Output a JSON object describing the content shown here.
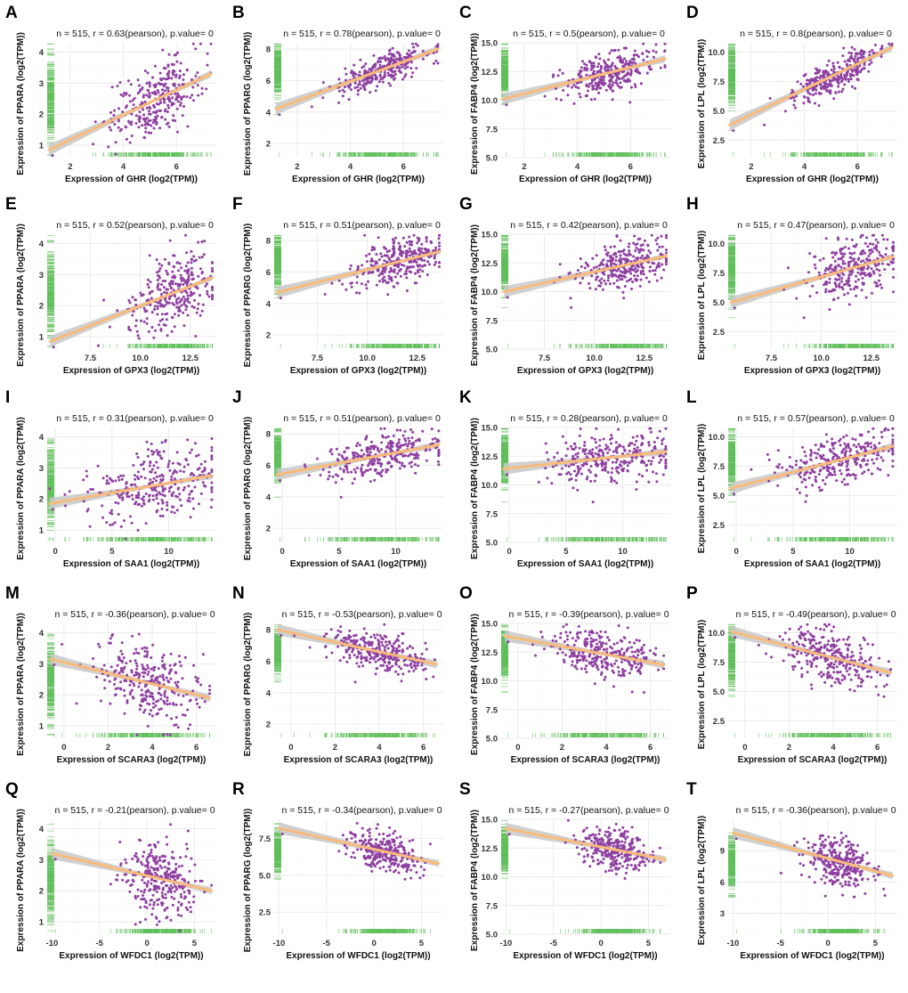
{
  "figure": {
    "n_label": "n = 515",
    "method": "pearson",
    "colors": {
      "points": "#8e3fa0",
      "fit_line": "#f9bb7a",
      "confidence_band": "#c8c8c8",
      "rug": "#5fbf5a",
      "grid": "#ebebeb"
    }
  },
  "chart_data": [
    {
      "panel": "A",
      "type": "scatter",
      "title": "n = 515, r = 0.63(pearson), p.value= 0",
      "xgene": "GHR",
      "ygene": "PPARA",
      "xlabel": "Expression of GHR (log2(TPM))",
      "ylabel": "Expression of PPARA (log2(TPM))",
      "n": 515,
      "r": 0.63,
      "p_value": 0,
      "xlim": [
        1.1,
        7.5
      ],
      "ylim": [
        0.6,
        4.3
      ],
      "xticks": [
        2,
        4,
        6
      ],
      "yticks": [
        1,
        2,
        3,
        4
      ],
      "ytick_labels": [
        "1",
        "2",
        "3",
        "4"
      ],
      "fit": {
        "x0": 1.2,
        "y0": 0.85,
        "x1": 7.3,
        "y1": 3.3
      },
      "cloud": {
        "xmean": 5.2,
        "xsd": 0.85,
        "ysd": 0.55
      }
    },
    {
      "panel": "B",
      "type": "scatter",
      "title": "n = 515, r = 0.78(pearson), p.value= 0",
      "xgene": "GHR",
      "ygene": "PPARG",
      "xlabel": "Expression of GHR (log2(TPM))",
      "ylabel": "Expression of PPARG (log2(TPM))",
      "n": 515,
      "r": 0.78,
      "p_value": 0,
      "xlim": [
        1.1,
        7.5
      ],
      "ylim": [
        1.1,
        8.4
      ],
      "xticks": [
        2,
        4,
        6
      ],
      "yticks": [
        2,
        4,
        6,
        8
      ],
      "ytick_labels": [
        "2",
        "4",
        "6",
        "8"
      ],
      "fit": {
        "x0": 1.2,
        "y0": 4.2,
        "x1": 7.3,
        "y1": 8.0
      },
      "cloud": {
        "xmean": 5.2,
        "xsd": 0.85,
        "ysd": 0.5
      }
    },
    {
      "panel": "C",
      "type": "scatter",
      "title": "n = 515, r = 0.5(pearson), p.value= 0",
      "xgene": "GHR",
      "ygene": "FABP4",
      "xlabel": "Expression of GHR (log2(TPM))",
      "ylabel": "Expression of FABP4 (log2(TPM))",
      "n": 515,
      "r": 0.5,
      "p_value": 0,
      "xlim": [
        1.1,
        7.5
      ],
      "ylim": [
        5.0,
        15.0
      ],
      "xticks": [
        2,
        4,
        6
      ],
      "yticks": [
        5,
        7.5,
        10,
        12.5,
        15
      ],
      "ytick_labels": [
        "5.0",
        "7.5",
        "10.0",
        "12.5",
        "15.0"
      ],
      "fit": {
        "x0": 1.2,
        "y0": 10.1,
        "x1": 7.3,
        "y1": 13.6
      },
      "cloud": {
        "xmean": 5.2,
        "xsd": 0.85,
        "ysd": 0.9
      }
    },
    {
      "panel": "D",
      "type": "scatter",
      "title": "n = 515, r = 0.8(pearson), p.value= 0",
      "xgene": "GHR",
      "ygene": "LPL",
      "xlabel": "Expression of GHR (log2(TPM))",
      "ylabel": "Expression of LPL (log2(TPM))",
      "n": 515,
      "r": 0.8,
      "p_value": 0,
      "xlim": [
        1.1,
        7.5
      ],
      "ylim": [
        1.0,
        10.8
      ],
      "xticks": [
        2,
        4,
        6
      ],
      "yticks": [
        2.5,
        5,
        7.5,
        10
      ],
      "ytick_labels": [
        "2.5",
        "5.0",
        "7.5",
        "10.0"
      ],
      "fit": {
        "x0": 1.2,
        "y0": 3.8,
        "x1": 7.3,
        "y1": 10.4
      },
      "cloud": {
        "xmean": 5.2,
        "xsd": 0.85,
        "ysd": 0.75
      }
    },
    {
      "panel": "E",
      "type": "scatter",
      "title": "n = 515, r = 0.52(pearson), p.value= 0",
      "xgene": "GPX3",
      "ygene": "PPARA",
      "xlabel": "Expression of GPX3 (log2(TPM))",
      "ylabel": "Expression of PPARA (log2(TPM))",
      "n": 515,
      "r": 0.52,
      "p_value": 0,
      "xlim": [
        5.3,
        13.8
      ],
      "ylim": [
        0.6,
        4.3
      ],
      "xticks": [
        7.5,
        10.0,
        12.5
      ],
      "yticks": [
        1,
        2,
        3,
        4
      ],
      "ytick_labels": [
        "1",
        "2",
        "3",
        "4"
      ],
      "fit": {
        "x0": 5.5,
        "y0": 0.85,
        "x1": 13.6,
        "y1": 2.9
      },
      "cloud": {
        "xmean": 11.6,
        "xsd": 1.15,
        "ysd": 0.6
      }
    },
    {
      "panel": "F",
      "type": "scatter",
      "title": "n = 515, r = 0.51(pearson), p.value= 0",
      "xgene": "GPX3",
      "ygene": "PPARG",
      "xlabel": "Expression of GPX3 (log2(TPM))",
      "ylabel": "Expression of PPARG (log2(TPM))",
      "n": 515,
      "r": 0.51,
      "p_value": 0,
      "xlim": [
        5.3,
        13.8
      ],
      "ylim": [
        1.1,
        8.4
      ],
      "xticks": [
        7.5,
        10.0,
        12.5
      ],
      "yticks": [
        2,
        4,
        6,
        8
      ],
      "ytick_labels": [
        "2",
        "4",
        "6",
        "8"
      ],
      "fit": {
        "x0": 5.5,
        "y0": 4.7,
        "x1": 13.6,
        "y1": 7.3
      },
      "cloud": {
        "xmean": 11.6,
        "xsd": 1.15,
        "ysd": 0.7
      }
    },
    {
      "panel": "G",
      "type": "scatter",
      "title": "n = 515, r = 0.42(pearson), p.value= 0",
      "xgene": "GPX3",
      "ygene": "FABP4",
      "xlabel": "Expression of GPX3 (log2(TPM))",
      "ylabel": "Expression of FABP4 (log2(TPM))",
      "n": 515,
      "r": 0.42,
      "p_value": 0,
      "xlim": [
        5.3,
        13.8
      ],
      "ylim": [
        5.0,
        15.0
      ],
      "xticks": [
        7.5,
        10.0,
        12.5
      ],
      "yticks": [
        5,
        7.5,
        10,
        12.5,
        15
      ],
      "ytick_labels": [
        "5.0",
        "7.5",
        "10.0",
        "12.5",
        "15.0"
      ],
      "fit": {
        "x0": 5.5,
        "y0": 10.0,
        "x1": 13.6,
        "y1": 13.1
      },
      "cloud": {
        "xmean": 11.6,
        "xsd": 1.15,
        "ysd": 1.0
      }
    },
    {
      "panel": "H",
      "type": "scatter",
      "title": "n = 515, r = 0.47(pearson), p.value= 0",
      "xgene": "GPX3",
      "ygene": "LPL",
      "xlabel": "Expression of GPX3 (log2(TPM))",
      "ylabel": "Expression of LPL (log2(TPM))",
      "n": 515,
      "r": 0.47,
      "p_value": 0,
      "xlim": [
        5.3,
        13.8
      ],
      "ylim": [
        1.0,
        10.8
      ],
      "xticks": [
        7.5,
        10.0,
        12.5
      ],
      "yticks": [
        2.5,
        5,
        7.5,
        10
      ],
      "ytick_labels": [
        "2.5",
        "5.0",
        "7.5",
        "10.0"
      ],
      "fit": {
        "x0": 5.5,
        "y0": 5.0,
        "x1": 13.6,
        "y1": 8.9
      },
      "cloud": {
        "xmean": 11.6,
        "xsd": 1.15,
        "ysd": 1.2
      }
    },
    {
      "panel": "I",
      "type": "scatter",
      "title": "n = 515, r = 0.31(pearson), p.value= 0",
      "xgene": "SAA1",
      "ygene": "PPARA",
      "xlabel": "Expression of SAA1 (log2(TPM))",
      "ylabel": "Expression of PPARA (log2(TPM))",
      "n": 515,
      "r": 0.31,
      "p_value": 0,
      "xlim": [
        -0.8,
        14.2
      ],
      "ylim": [
        0.6,
        4.3
      ],
      "xticks": [
        0,
        5,
        10
      ],
      "yticks": [
        1,
        2,
        3,
        4
      ],
      "ytick_labels": [
        "1",
        "2",
        "3",
        "4"
      ],
      "fit": {
        "x0": -0.5,
        "y0": 1.85,
        "x1": 13.8,
        "y1": 2.75
      },
      "cloud": {
        "xmean": 9.0,
        "xsd": 2.8,
        "ysd": 0.6
      }
    },
    {
      "panel": "J",
      "type": "scatter",
      "title": "n = 515, r = 0.51(pearson), p.value= 0",
      "xgene": "SAA1",
      "ygene": "PPARG",
      "xlabel": "Expression of SAA1 (log2(TPM))",
      "ylabel": "Expression of PPARG (log2(TPM))",
      "n": 515,
      "r": 0.51,
      "p_value": 0,
      "xlim": [
        -0.8,
        14.2
      ],
      "ylim": [
        1.1,
        8.4
      ],
      "xticks": [
        0,
        5,
        10
      ],
      "yticks": [
        2,
        4,
        6,
        8
      ],
      "ytick_labels": [
        "2",
        "4",
        "6",
        "8"
      ],
      "fit": {
        "x0": -0.5,
        "y0": 5.4,
        "x1": 13.8,
        "y1": 7.3
      },
      "cloud": {
        "xmean": 9.0,
        "xsd": 2.8,
        "ysd": 0.65
      }
    },
    {
      "panel": "K",
      "type": "scatter",
      "title": "n = 515, r = 0.28(pearson), p.value= 0",
      "xgene": "SAA1",
      "ygene": "FABP4",
      "xlabel": "Expression of SAA1 (log2(TPM))",
      "ylabel": "Expression of FABP4 (log2(TPM))",
      "n": 515,
      "r": 0.28,
      "p_value": 0,
      "xlim": [
        -0.8,
        14.2
      ],
      "ylim": [
        5.0,
        15.0
      ],
      "xticks": [
        0,
        5,
        10
      ],
      "yticks": [
        5,
        7.5,
        10,
        12.5,
        15
      ],
      "ytick_labels": [
        "5.0",
        "7.5",
        "10.0",
        "12.5",
        "15.0"
      ],
      "fit": {
        "x0": -0.5,
        "y0": 11.4,
        "x1": 13.8,
        "y1": 12.9
      },
      "cloud": {
        "xmean": 9.0,
        "xsd": 2.8,
        "ysd": 1.0
      }
    },
    {
      "panel": "L",
      "type": "scatter",
      "title": "n = 515, r = 0.57(pearson), p.value= 0",
      "xgene": "SAA1",
      "ygene": "LPL",
      "xlabel": "Expression of SAA1 (log2(TPM))",
      "ylabel": "Expression of LPL (log2(TPM))",
      "n": 515,
      "r": 0.57,
      "p_value": 0,
      "xlim": [
        -0.8,
        14.2
      ],
      "ylim": [
        1.0,
        10.8
      ],
      "xticks": [
        0,
        5,
        10
      ],
      "yticks": [
        2.5,
        5,
        7.5,
        10
      ],
      "ytick_labels": [
        "2.5",
        "5.0",
        "7.5",
        "10.0"
      ],
      "fit": {
        "x0": -0.5,
        "y0": 5.6,
        "x1": 13.8,
        "y1": 9.2
      },
      "cloud": {
        "xmean": 9.0,
        "xsd": 2.8,
        "ysd": 1.1
      }
    },
    {
      "panel": "M",
      "type": "scatter",
      "title": "n = 515, r = -0.36(pearson), p.value= 0",
      "xgene": "SCARA3",
      "ygene": "PPARA",
      "xlabel": "Expression of SCARA3 (log2(TPM))",
      "ylabel": "Expression of PPARA (log2(TPM))",
      "n": 515,
      "r": -0.36,
      "p_value": 0,
      "xlim": [
        -0.8,
        6.9
      ],
      "ylim": [
        0.6,
        4.3
      ],
      "xticks": [
        0,
        2,
        4,
        6
      ],
      "yticks": [
        1,
        2,
        3,
        4
      ],
      "ytick_labels": [
        "1",
        "2",
        "3",
        "4"
      ],
      "fit": {
        "x0": -0.6,
        "y0": 3.15,
        "x1": 6.6,
        "y1": 1.9
      },
      "cloud": {
        "xmean": 3.9,
        "xsd": 1.2,
        "ysd": 0.6
      }
    },
    {
      "panel": "N",
      "type": "scatter",
      "title": "n = 515, r = -0.53(pearson), p.value= 0",
      "xgene": "SCARA3",
      "ygene": "PPARG",
      "xlabel": "Expression of SCARA3 (log2(TPM))",
      "ylabel": "Expression of PPARG (log2(TPM))",
      "n": 515,
      "r": -0.53,
      "p_value": 0,
      "xlim": [
        -0.8,
        6.9
      ],
      "ylim": [
        1.1,
        8.4
      ],
      "xticks": [
        0,
        2,
        4,
        6
      ],
      "yticks": [
        2,
        4,
        6,
        8
      ],
      "ytick_labels": [
        "2",
        "4",
        "6",
        "8"
      ],
      "fit": {
        "x0": -0.6,
        "y0": 8.0,
        "x1": 6.6,
        "y1": 5.8
      },
      "cloud": {
        "xmean": 3.9,
        "xsd": 1.2,
        "ysd": 0.6
      }
    },
    {
      "panel": "O",
      "type": "scatter",
      "title": "n = 515, r = -0.39(pearson), p.value= 0",
      "xgene": "SCARA3",
      "ygene": "FABP4",
      "xlabel": "Expression of SCARA3 (log2(TPM))",
      "ylabel": "Expression of FABP4 (log2(TPM))",
      "n": 515,
      "r": -0.39,
      "p_value": 0,
      "xlim": [
        -0.8,
        6.9
      ],
      "ylim": [
        5.0,
        15.0
      ],
      "xticks": [
        0,
        2,
        4,
        6
      ],
      "yticks": [
        5,
        7.5,
        10,
        12.5,
        15
      ],
      "ytick_labels": [
        "5.0",
        "7.5",
        "10.0",
        "12.5",
        "15.0"
      ],
      "fit": {
        "x0": -0.6,
        "y0": 13.9,
        "x1": 6.6,
        "y1": 11.4
      },
      "cloud": {
        "xmean": 3.9,
        "xsd": 1.2,
        "ysd": 0.95
      }
    },
    {
      "panel": "P",
      "type": "scatter",
      "title": "n = 515, r = -0.49(pearson), p.value= 0",
      "xgene": "SCARA3",
      "ygene": "LPL",
      "xlabel": "Expression of SCARA3 (log2(TPM))",
      "ylabel": "Expression of LPL (log2(TPM))",
      "n": 515,
      "r": -0.49,
      "p_value": 0,
      "xlim": [
        -0.8,
        6.9
      ],
      "ylim": [
        1.0,
        10.8
      ],
      "xticks": [
        0,
        2,
        4,
        6
      ],
      "yticks": [
        2.5,
        5,
        7.5,
        10
      ],
      "ytick_labels": [
        "2.5",
        "5.0",
        "7.5",
        "10.0"
      ],
      "fit": {
        "x0": -0.6,
        "y0": 10.1,
        "x1": 6.6,
        "y1": 6.6
      },
      "cloud": {
        "xmean": 3.9,
        "xsd": 1.2,
        "ysd": 1.15
      }
    },
    {
      "panel": "Q",
      "type": "scatter",
      "title": "n = 515, r = -0.21(pearson), p.value= 0",
      "xgene": "WFDC1",
      "ygene": "PPARA",
      "xlabel": "Expression of WFDC1 (log2(TPM))",
      "ylabel": "Expression of PPARA (log2(TPM))",
      "n": 515,
      "r": -0.21,
      "p_value": 0,
      "xlim": [
        -10.6,
        7.3
      ],
      "ylim": [
        0.6,
        4.3
      ],
      "xticks": [
        -10,
        -5,
        0,
        5
      ],
      "yticks": [
        1,
        2,
        3,
        4
      ],
      "ytick_labels": [
        "1",
        "2",
        "3",
        "4"
      ],
      "fit": {
        "x0": -10.0,
        "y0": 3.2,
        "x1": 6.8,
        "y1": 2.0
      },
      "cloud": {
        "xmean": 1.3,
        "xsd": 1.8,
        "ysd": 0.6
      }
    },
    {
      "panel": "R",
      "type": "scatter",
      "title": "n = 515, r = -0.34(pearson), p.value= 0",
      "xgene": "WFDC1",
      "ygene": "PPARG",
      "xlabel": "Expression of WFDC1 (log2(TPM))",
      "ylabel": "Expression of PPARG (log2(TPM))",
      "n": 515,
      "r": -0.34,
      "p_value": 0,
      "xlim": [
        -10.6,
        7.3
      ],
      "ylim": [
        1.0,
        8.8
      ],
      "xticks": [
        -10,
        -5,
        0,
        5
      ],
      "yticks": [
        2.5,
        5,
        7.5
      ],
      "ytick_labels": [
        "2.5",
        "5.0",
        "7.5"
      ],
      "fit": {
        "x0": -10.0,
        "y0": 8.2,
        "x1": 6.8,
        "y1": 5.8
      },
      "cloud": {
        "xmean": 1.3,
        "xsd": 1.8,
        "ysd": 0.6
      }
    },
    {
      "panel": "S",
      "type": "scatter",
      "title": "n = 515, r = -0.27(pearson), p.value= 0",
      "xgene": "WFDC1",
      "ygene": "FABP4",
      "xlabel": "Expression of WFDC1 (log2(TPM))",
      "ylabel": "Expression of FABP4 (log2(TPM))",
      "n": 515,
      "r": -0.27,
      "p_value": 0,
      "xlim": [
        -10.6,
        7.3
      ],
      "ylim": [
        5.0,
        15.0
      ],
      "xticks": [
        -10,
        -5,
        0,
        5
      ],
      "yticks": [
        5,
        7.5,
        10,
        12.5,
        15
      ],
      "ytick_labels": [
        "5.0",
        "7.5",
        "10.0",
        "12.5",
        "15.0"
      ],
      "fit": {
        "x0": -10.0,
        "y0": 14.2,
        "x1": 6.8,
        "y1": 11.5
      },
      "cloud": {
        "xmean": 1.3,
        "xsd": 1.8,
        "ysd": 0.95
      }
    },
    {
      "panel": "T",
      "type": "scatter",
      "title": "n = 515, r = -0.36(pearson), p.value= 0",
      "xgene": "WFDC1",
      "ygene": "LPL",
      "xlabel": "Expression of WFDC1 (log2(TPM))",
      "ylabel": "Expression of LPL (log2(TPM))",
      "n": 515,
      "r": -0.36,
      "p_value": 0,
      "xlim": [
        -10.6,
        7.3
      ],
      "ylim": [
        1.0,
        12.0
      ],
      "xticks": [
        -10,
        -5,
        0,
        5
      ],
      "yticks": [
        3,
        6,
        9
      ],
      "ytick_labels": [
        "3",
        "6",
        "9"
      ],
      "fit": {
        "x0": -10.0,
        "y0": 10.7,
        "x1": 6.8,
        "y1": 6.6
      },
      "cloud": {
        "xmean": 1.3,
        "xsd": 1.8,
        "ysd": 1.2
      }
    }
  ]
}
